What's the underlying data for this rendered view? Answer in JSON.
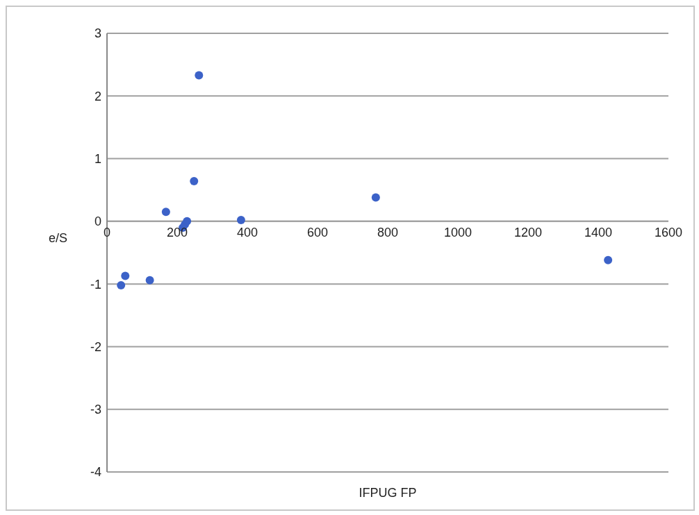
{
  "chart_data": {
    "type": "scatter",
    "xlabel": "IFPUG FP",
    "ylabel": "e/S",
    "x": [
      262,
      248,
      168,
      228,
      222,
      216,
      382,
      766,
      1428,
      52,
      40,
      122
    ],
    "series": [
      {
        "color": "#3c62c8",
        "values": [
          2.33,
          0.64,
          0.15,
          0.0,
          -0.05,
          -0.1,
          0.02,
          0.38,
          -0.62,
          -0.87,
          -1.02,
          -0.94
        ]
      }
    ],
    "xlim": [
      0,
      1600
    ],
    "xticks": [
      0,
      200,
      400,
      600,
      800,
      1000,
      1200,
      1400,
      1600
    ],
    "ylim": [
      -4,
      3
    ],
    "yticks": [
      -4,
      -3,
      -2,
      -1,
      0,
      1,
      2,
      3
    ],
    "grid": "y",
    "marker": "circle"
  }
}
